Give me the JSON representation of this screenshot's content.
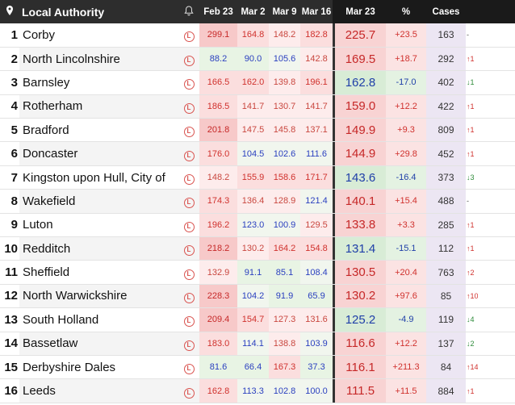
{
  "header": {
    "location_icon": "map-pin-icon",
    "authority_label": "Local Authority",
    "bell_icon": "bell-icon",
    "cols": [
      "Feb 23",
      "Mar 2",
      "Mar 9",
      "Mar 16",
      "Mar 23",
      "%",
      "Cases"
    ]
  },
  "colors": {
    "up_text": "#d0312d",
    "down_text": "#2e8b3a",
    "cases_bg": "#ece6f3",
    "header_bg": "#2d2d2d"
  },
  "rows": [
    {
      "rank": "1",
      "name": "Corby",
      "feb23": "299.1",
      "mar2": "164.8",
      "mar9": "148.2",
      "mar16": "182.8",
      "mar23": "225.7",
      "pct": "+23.5",
      "cases": "163",
      "trend": "-"
    },
    {
      "rank": "2",
      "name": "North Lincolnshire",
      "feb23": "88.2",
      "mar2": "90.0",
      "mar9": "105.6",
      "mar16": "142.8",
      "mar23": "169.5",
      "pct": "+18.7",
      "cases": "292",
      "trend": "↑1"
    },
    {
      "rank": "3",
      "name": "Barnsley",
      "feb23": "166.5",
      "mar2": "162.0",
      "mar9": "139.8",
      "mar16": "196.1",
      "mar23": "162.8",
      "pct": "-17.0",
      "cases": "402",
      "trend": "↓1"
    },
    {
      "rank": "4",
      "name": "Rotherham",
      "feb23": "186.5",
      "mar2": "141.7",
      "mar9": "130.7",
      "mar16": "141.7",
      "mar23": "159.0",
      "pct": "+12.2",
      "cases": "422",
      "trend": "↑1"
    },
    {
      "rank": "5",
      "name": "Bradford",
      "feb23": "201.8",
      "mar2": "147.5",
      "mar9": "145.8",
      "mar16": "137.1",
      "mar23": "149.9",
      "pct": "+9.3",
      "cases": "809",
      "trend": "↑1"
    },
    {
      "rank": "6",
      "name": "Doncaster",
      "feb23": "176.0",
      "mar2": "104.5",
      "mar9": "102.6",
      "mar16": "111.6",
      "mar23": "144.9",
      "pct": "+29.8",
      "cases": "452",
      "trend": "↑1"
    },
    {
      "rank": "7",
      "name": "Kingston upon Hull, City of",
      "feb23": "148.2",
      "mar2": "155.9",
      "mar9": "158.6",
      "mar16": "171.7",
      "mar23": "143.6",
      "pct": "-16.4",
      "cases": "373",
      "trend": "↓3"
    },
    {
      "rank": "8",
      "name": "Wakefield",
      "feb23": "174.3",
      "mar2": "136.4",
      "mar9": "128.9",
      "mar16": "121.4",
      "mar23": "140.1",
      "pct": "+15.4",
      "cases": "488",
      "trend": "-"
    },
    {
      "rank": "9",
      "name": "Luton",
      "feb23": "196.2",
      "mar2": "123.0",
      "mar9": "100.9",
      "mar16": "129.5",
      "mar23": "133.8",
      "pct": "+3.3",
      "cases": "285",
      "trend": "↑1"
    },
    {
      "rank": "10",
      "name": "Redditch",
      "feb23": "218.2",
      "mar2": "130.2",
      "mar9": "164.2",
      "mar16": "154.8",
      "mar23": "131.4",
      "pct": "-15.1",
      "cases": "112",
      "trend": "↑1"
    },
    {
      "rank": "11",
      "name": "Sheffield",
      "feb23": "132.9",
      "mar2": "91.1",
      "mar9": "85.1",
      "mar16": "108.4",
      "mar23": "130.5",
      "pct": "+20.4",
      "cases": "763",
      "trend": "↑2"
    },
    {
      "rank": "12",
      "name": "North Warwickshire",
      "feb23": "228.3",
      "mar2": "104.2",
      "mar9": "91.9",
      "mar16": "65.9",
      "mar23": "130.2",
      "pct": "+97.6",
      "cases": "85",
      "trend": "↑10"
    },
    {
      "rank": "13",
      "name": "South Holland",
      "feb23": "209.4",
      "mar2": "154.7",
      "mar9": "127.3",
      "mar16": "131.6",
      "mar23": "125.2",
      "pct": "-4.9",
      "cases": "119",
      "trend": "↓4"
    },
    {
      "rank": "14",
      "name": "Bassetlaw",
      "feb23": "183.0",
      "mar2": "114.1",
      "mar9": "138.8",
      "mar16": "103.9",
      "mar23": "116.6",
      "pct": "+12.2",
      "cases": "137",
      "trend": "↓2"
    },
    {
      "rank": "15",
      "name": "Derbyshire Dales",
      "feb23": "81.6",
      "mar2": "66.4",
      "mar9": "167.3",
      "mar16": "37.3",
      "mar23": "116.1",
      "pct": "+211.3",
      "cases": "84",
      "trend": "↑14"
    },
    {
      "rank": "16",
      "name": "Leeds",
      "feb23": "162.8",
      "mar2": "113.3",
      "mar9": "102.8",
      "mar16": "100.0",
      "mar23": "111.5",
      "pct": "+11.5",
      "cases": "884",
      "trend": "↑1"
    }
  ]
}
